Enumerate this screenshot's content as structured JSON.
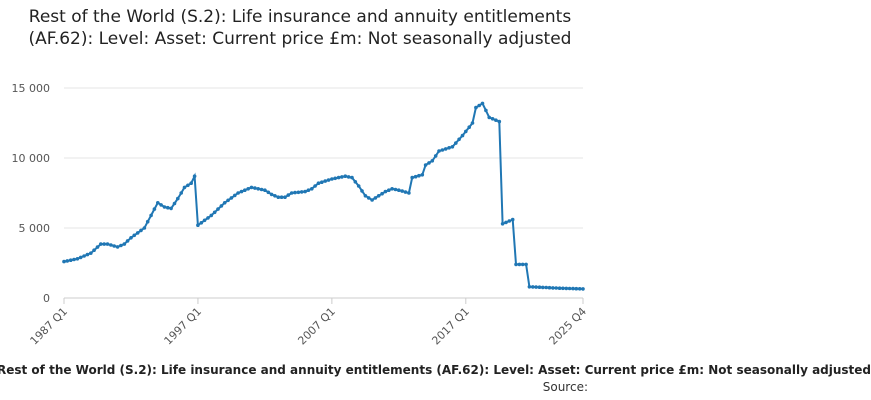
{
  "chart_data": {
    "type": "line",
    "title": "Rest of the World (S.2): Life insurance and annuity entitlements (AF.62): Level: Asset: Current price £m: Not seasonally adjusted",
    "xlabel": "",
    "ylabel": "",
    "ylim": [
      0,
      15000
    ],
    "yticks": [
      0,
      5000,
      10000,
      15000
    ],
    "ytick_labels": [
      "0",
      "5 000",
      "10 000",
      "15 000"
    ],
    "xticks": [
      "1987 Q1",
      "1997 Q1",
      "2007 Q1",
      "2017 Q1",
      "2025 Q4"
    ],
    "legend": "Rest of the World (S.2): Life insurance and annuity entitlements (AF.62): Level: Asset: Current price £m: Not seasonally adjusted",
    "source_label": "Source:",
    "series": [
      {
        "name": "Rest of the World (S.2): Life insurance and annuity entitlements (AF.62): Level: Asset: Current price £m: Not seasonally adjusted",
        "color": "#2077b4",
        "keypoints": [
          {
            "year": 1987.0,
            "value": 2600
          },
          {
            "year": 1988.0,
            "value": 2800
          },
          {
            "year": 1989.0,
            "value": 3200
          },
          {
            "year": 1989.75,
            "value": 3850
          },
          {
            "year": 1990.25,
            "value": 3850
          },
          {
            "year": 1991.0,
            "value": 3650
          },
          {
            "year": 1991.5,
            "value": 3850
          },
          {
            "year": 1992.0,
            "value": 4300
          },
          {
            "year": 1993.0,
            "value": 5000
          },
          {
            "year": 1994.0,
            "value": 6800
          },
          {
            "year": 1994.5,
            "value": 6500
          },
          {
            "year": 1995.0,
            "value": 6400
          },
          {
            "year": 1995.5,
            "value": 7100
          },
          {
            "year": 1996.0,
            "value": 7900
          },
          {
            "year": 1996.5,
            "value": 8200
          },
          {
            "year": 1996.75,
            "value": 8700
          },
          {
            "year": 1997.0,
            "value": 5200
          },
          {
            "year": 1998.0,
            "value": 5900
          },
          {
            "year": 1999.0,
            "value": 6800
          },
          {
            "year": 2000.0,
            "value": 7500
          },
          {
            "year": 2001.0,
            "value": 7900
          },
          {
            "year": 2002.0,
            "value": 7700
          },
          {
            "year": 2002.5,
            "value": 7400
          },
          {
            "year": 2003.0,
            "value": 7200
          },
          {
            "year": 2003.5,
            "value": 7200
          },
          {
            "year": 2004.0,
            "value": 7500
          },
          {
            "year": 2005.0,
            "value": 7600
          },
          {
            "year": 2005.5,
            "value": 7800
          },
          {
            "year": 2006.0,
            "value": 8200
          },
          {
            "year": 2007.0,
            "value": 8500
          },
          {
            "year": 2008.0,
            "value": 8700
          },
          {
            "year": 2008.5,
            "value": 8600
          },
          {
            "year": 2009.0,
            "value": 8000
          },
          {
            "year": 2009.5,
            "value": 7300
          },
          {
            "year": 2010.0,
            "value": 7000
          },
          {
            "year": 2011.0,
            "value": 7600
          },
          {
            "year": 2011.5,
            "value": 7800
          },
          {
            "year": 2012.0,
            "value": 7700
          },
          {
            "year": 2012.75,
            "value": 7500
          },
          {
            "year": 2013.0,
            "value": 8600
          },
          {
            "year": 2013.75,
            "value": 8800
          },
          {
            "year": 2014.0,
            "value": 9500
          },
          {
            "year": 2014.5,
            "value": 9800
          },
          {
            "year": 2015.0,
            "value": 10500
          },
          {
            "year": 2016.0,
            "value": 10800
          },
          {
            "year": 2016.75,
            "value": 11600
          },
          {
            "year": 2017.5,
            "value": 12500
          },
          {
            "year": 2017.75,
            "value": 13600
          },
          {
            "year": 2018.25,
            "value": 13900
          },
          {
            "year": 2018.75,
            "value": 12900
          },
          {
            "year": 2019.5,
            "value": 12600
          },
          {
            "year": 2019.75,
            "value": 5300
          },
          {
            "year": 2020.5,
            "value": 5600
          },
          {
            "year": 2020.75,
            "value": 2400
          },
          {
            "year": 2021.5,
            "value": 2400
          },
          {
            "year": 2021.75,
            "value": 800
          },
          {
            "year": 2023.0,
            "value": 750
          },
          {
            "year": 2024.0,
            "value": 700
          },
          {
            "year": 2025.75,
            "value": 650
          }
        ]
      }
    ]
  }
}
